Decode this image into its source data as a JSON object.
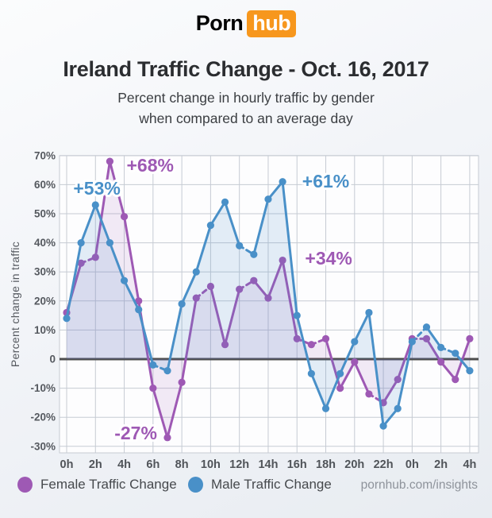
{
  "header": {
    "logo_part1": "Porn",
    "logo_part2": "hub",
    "title": "Ireland Traffic Change - Oct. 16, 2017",
    "subtitle_line1": "Percent change in hourly traffic by gender",
    "subtitle_line2": "when compared to an average day"
  },
  "chart_data": {
    "type": "line",
    "title": "Ireland Traffic Change - Oct. 16, 2017",
    "ylabel": "Percent change in traffic",
    "ylim": [
      -30,
      70
    ],
    "grid": true,
    "hours_span": 28,
    "x_tick_hours": [
      0,
      2,
      4,
      6,
      8,
      10,
      12,
      14,
      16,
      18,
      20,
      22,
      24,
      26,
      28
    ],
    "x_tick_labels": [
      "0h",
      "2h",
      "4h",
      "6h",
      "8h",
      "10h",
      "12h",
      "14h",
      "16h",
      "18h",
      "20h",
      "22h",
      "0h",
      "2h",
      "4h"
    ],
    "y_ticks": [
      {
        "v": 70,
        "label": "70%"
      },
      {
        "v": 60,
        "label": "60%"
      },
      {
        "v": 50,
        "label": "50%"
      },
      {
        "v": 40,
        "label": "40%"
      },
      {
        "v": 30,
        "label": "30%"
      },
      {
        "v": 20,
        "label": "20%"
      },
      {
        "v": 10,
        "label": "10%"
      },
      {
        "v": 0,
        "label": "0"
      },
      {
        "v": -10,
        "label": "-10%"
      },
      {
        "v": -20,
        "label": "-20%"
      },
      {
        "v": -30,
        "label": "-30%"
      }
    ],
    "series": [
      {
        "name": "Female Traffic Change",
        "key": "female",
        "color": "#9e59b4",
        "fill_opacity": 0.12,
        "values": [
          16,
          33,
          35,
          68,
          49,
          20,
          -10,
          -27,
          -8,
          21,
          25,
          5,
          24,
          27,
          21,
          34,
          7,
          5,
          7,
          -10,
          -1,
          -12,
          -15,
          -7,
          7,
          7,
          -1,
          -7,
          7
        ]
      },
      {
        "name": "Male Traffic Change",
        "key": "male",
        "color": "#4990c8",
        "fill_opacity": 0.15,
        "values": [
          14,
          40,
          53,
          40,
          27,
          17,
          -2,
          -4,
          19,
          30,
          46,
          54,
          39,
          36,
          55,
          61,
          15,
          -5,
          -17,
          -5,
          6,
          16,
          -23,
          -17,
          6,
          11,
          4,
          2,
          -4
        ]
      }
    ],
    "annotations": [
      {
        "text": "+53%",
        "series": "male",
        "hour": 2.1,
        "value": 58.7
      },
      {
        "text": "+68%",
        "series": "female",
        "hour": 5.8,
        "value": 66.7
      },
      {
        "text": "+61%",
        "series": "male",
        "hour": 18.0,
        "value": 61.2
      },
      {
        "text": "+34%",
        "series": "female",
        "hour": 18.2,
        "value": 34.7
      },
      {
        "text": "-27%",
        "series": "female",
        "hour": 4.8,
        "value": -25.4
      }
    ],
    "colors": {
      "grid": "#c6cbd3",
      "zero_line": "#4d4d4d",
      "plot_bg": "#fdfdfe"
    }
  },
  "legend": {
    "items": [
      {
        "label": "Female Traffic Change",
        "series": "female"
      },
      {
        "label": "Male Traffic Change",
        "series": "male"
      }
    ]
  },
  "footer": {
    "credit": "pornhub.com/insights"
  }
}
